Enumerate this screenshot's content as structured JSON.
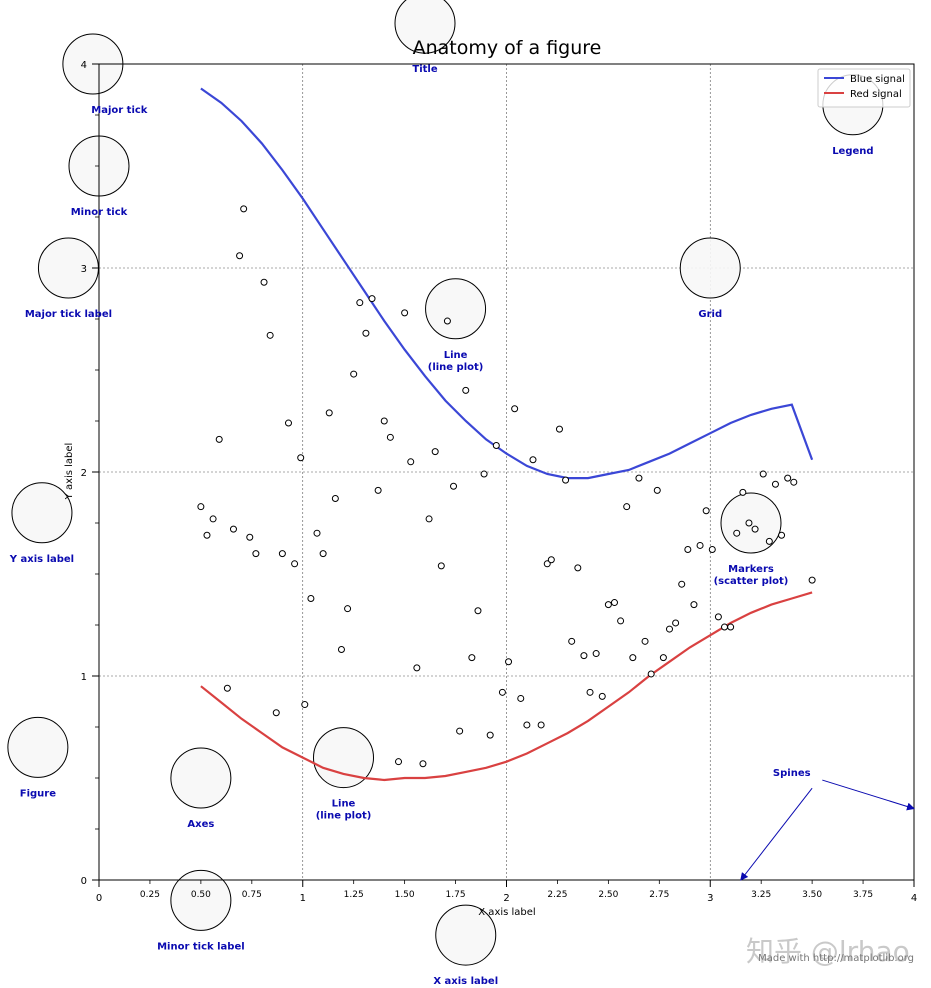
{
  "chart_data": {
    "type": "line",
    "title": "Anatomy of a figure",
    "xlabel": "X axis label",
    "ylabel": "Y axis label",
    "xlim": [
      0,
      4
    ],
    "ylim": [
      0,
      4
    ],
    "grid": true,
    "legend_position": "top-right",
    "x_major_ticks": [
      0,
      1,
      2,
      3,
      4
    ],
    "x_major_tick_labels": [
      "0",
      "1",
      "2",
      "3",
      "4"
    ],
    "x_minor_ticks": [
      0.25,
      0.5,
      0.75,
      1.25,
      1.5,
      1.75,
      2.25,
      2.5,
      2.75,
      3.25,
      3.5,
      3.75
    ],
    "x_minor_tick_labels": [
      "0.25",
      "0.50",
      "0.75",
      "1.25",
      "1.50",
      "1.75",
      "2.25",
      "2.50",
      "2.75",
      "3.25",
      "3.50",
      "3.75"
    ],
    "y_major_ticks": [
      0,
      1,
      2,
      3,
      4
    ],
    "y_major_tick_labels": [
      "0",
      "1",
      "2",
      "3",
      "4"
    ],
    "y_minor_ticks": [
      0.25,
      0.5,
      0.75,
      1.25,
      1.5,
      1.75,
      2.25,
      2.5,
      2.75,
      3.25,
      3.5,
      3.75
    ],
    "series": [
      {
        "name": "Blue signal",
        "color": "#3b47d6",
        "style": "line",
        "x": [
          0.5,
          0.6,
          0.7,
          0.8,
          0.9,
          1.0,
          1.1,
          1.2,
          1.3,
          1.4,
          1.5,
          1.6,
          1.7,
          1.8,
          1.9,
          2.0,
          2.1,
          2.2,
          2.3,
          2.4,
          2.5,
          2.6,
          2.7,
          2.8,
          2.9,
          3.0,
          3.1,
          3.2,
          3.3,
          3.4,
          3.5
        ],
        "y": [
          3.88,
          3.81,
          3.72,
          3.61,
          3.48,
          3.34,
          3.19,
          3.04,
          2.89,
          2.74,
          2.6,
          2.47,
          2.35,
          2.25,
          2.16,
          2.09,
          2.03,
          1.99,
          1.97,
          1.97,
          1.99,
          2.01,
          2.05,
          2.09,
          2.14,
          2.19,
          2.24,
          2.28,
          2.31,
          2.33,
          2.06
        ]
      },
      {
        "name": "Red signal",
        "color": "#d94141",
        "style": "line",
        "x": [
          0.5,
          0.6,
          0.7,
          0.8,
          0.9,
          1.0,
          1.1,
          1.2,
          1.3,
          1.4,
          1.5,
          1.6,
          1.7,
          1.8,
          1.9,
          2.0,
          2.1,
          2.2,
          2.3,
          2.4,
          2.5,
          2.6,
          2.7,
          2.8,
          2.9,
          3.0,
          3.1,
          3.2,
          3.3,
          3.4,
          3.5
        ],
        "y": [
          0.95,
          0.87,
          0.79,
          0.72,
          0.65,
          0.6,
          0.55,
          0.52,
          0.5,
          0.49,
          0.5,
          0.5,
          0.51,
          0.53,
          0.55,
          0.58,
          0.62,
          0.67,
          0.72,
          0.78,
          0.85,
          0.92,
          1.0,
          1.07,
          1.14,
          1.2,
          1.26,
          1.31,
          1.35,
          1.38,
          1.41
        ]
      },
      {
        "name": "",
        "style": "markers",
        "points": [
          [
            0.5,
            1.83
          ],
          [
            0.53,
            1.69
          ],
          [
            0.56,
            1.77
          ],
          [
            0.59,
            2.16
          ],
          [
            0.63,
            0.94
          ],
          [
            0.66,
            1.72
          ],
          [
            0.69,
            3.06
          ],
          [
            0.71,
            3.29
          ],
          [
            0.74,
            1.68
          ],
          [
            0.77,
            1.6
          ],
          [
            0.81,
            2.93
          ],
          [
            0.84,
            2.67
          ],
          [
            0.87,
            0.82
          ],
          [
            0.9,
            1.6
          ],
          [
            0.93,
            2.24
          ],
          [
            0.96,
            1.55
          ],
          [
            0.99,
            2.07
          ],
          [
            1.01,
            0.86
          ],
          [
            1.04,
            1.38
          ],
          [
            1.07,
            1.7
          ],
          [
            1.1,
            1.6
          ],
          [
            1.13,
            2.29
          ],
          [
            1.16,
            1.87
          ],
          [
            1.19,
            1.13
          ],
          [
            1.22,
            1.33
          ],
          [
            1.25,
            2.48
          ],
          [
            1.28,
            2.83
          ],
          [
            1.31,
            2.68
          ],
          [
            1.34,
            2.85
          ],
          [
            1.37,
            1.91
          ],
          [
            1.4,
            2.25
          ],
          [
            1.43,
            2.17
          ],
          [
            1.47,
            0.58
          ],
          [
            1.5,
            2.78
          ],
          [
            1.53,
            2.05
          ],
          [
            1.56,
            1.04
          ],
          [
            1.59,
            0.57
          ],
          [
            1.62,
            1.77
          ],
          [
            1.65,
            2.1
          ],
          [
            1.68,
            1.54
          ],
          [
            1.71,
            2.74
          ],
          [
            1.74,
            1.93
          ],
          [
            1.77,
            0.73
          ],
          [
            1.8,
            2.4
          ],
          [
            1.83,
            1.09
          ],
          [
            1.86,
            1.32
          ],
          [
            1.89,
            1.99
          ],
          [
            1.92,
            0.71
          ],
          [
            1.95,
            2.13
          ],
          [
            1.98,
            0.92
          ],
          [
            2.01,
            1.07
          ],
          [
            2.04,
            2.31
          ],
          [
            2.07,
            0.89
          ],
          [
            2.1,
            0.76
          ],
          [
            2.13,
            2.06
          ],
          [
            2.17,
            0.76
          ],
          [
            2.2,
            1.55
          ],
          [
            2.22,
            1.57
          ],
          [
            2.26,
            2.21
          ],
          [
            2.29,
            1.96
          ],
          [
            2.32,
            1.17
          ],
          [
            2.35,
            1.53
          ],
          [
            2.38,
            1.1
          ],
          [
            2.41,
            0.92
          ],
          [
            2.44,
            1.11
          ],
          [
            2.47,
            0.9
          ],
          [
            2.5,
            1.35
          ],
          [
            2.53,
            1.36
          ],
          [
            2.56,
            1.27
          ],
          [
            2.59,
            1.83
          ],
          [
            2.62,
            1.09
          ],
          [
            2.65,
            1.97
          ],
          [
            2.68,
            1.17
          ],
          [
            2.71,
            1.01
          ],
          [
            2.74,
            1.91
          ],
          [
            2.77,
            1.09
          ],
          [
            2.8,
            1.23
          ],
          [
            2.83,
            1.26
          ],
          [
            2.86,
            1.45
          ],
          [
            2.89,
            1.62
          ],
          [
            2.92,
            1.35
          ],
          [
            2.95,
            1.64
          ],
          [
            2.98,
            1.81
          ],
          [
            3.01,
            1.62
          ],
          [
            3.04,
            1.29
          ],
          [
            3.07,
            1.24
          ],
          [
            3.1,
            1.24
          ],
          [
            3.13,
            1.7
          ],
          [
            3.16,
            1.9
          ],
          [
            3.19,
            1.75
          ],
          [
            3.22,
            1.72
          ],
          [
            3.26,
            1.99
          ],
          [
            3.29,
            1.66
          ],
          [
            3.32,
            1.94
          ],
          [
            3.35,
            1.69
          ],
          [
            3.38,
            1.97
          ],
          [
            3.41,
            1.95
          ],
          [
            3.5,
            1.47
          ]
        ]
      }
    ],
    "annotations": [
      {
        "name": "annotation-title",
        "label": "Title",
        "x": 1.6,
        "y": 4.2,
        "text_x": 1.6,
        "text_y": 3.95
      },
      {
        "name": "annotation-major-tick",
        "label": "Major tick",
        "x": -0.03,
        "y": 4.0,
        "text_x": 0.1,
        "text_y": 3.75
      },
      {
        "name": "annotation-minor-tick",
        "label": "Minor tick",
        "x": 0.0,
        "y": 3.5,
        "text_x": 0.0,
        "text_y": 3.25
      },
      {
        "name": "annotation-major-tick-label",
        "label": "Major tick label",
        "x": -0.15,
        "y": 3.0,
        "text_x": -0.15,
        "text_y": 2.75
      },
      {
        "name": "annotation-grid",
        "label": "Grid",
        "x": 3.0,
        "y": 3.0,
        "text_x": 3.0,
        "text_y": 2.75
      },
      {
        "name": "annotation-line-blue",
        "label": "Line\n(line plot)",
        "x": 1.75,
        "y": 2.8,
        "text_x": 1.75,
        "text_y": 2.55
      },
      {
        "name": "annotation-legend",
        "label": "Legend",
        "x": 3.7,
        "y": 3.8,
        "text_x": 3.7,
        "text_y": 3.55
      },
      {
        "name": "annotation-y-axis-label",
        "label": "Y axis label",
        "x": -0.28,
        "y": 1.8,
        "text_x": -0.28,
        "text_y": 1.55
      },
      {
        "name": "annotation-markers",
        "label": "Markers\n(scatter plot)",
        "x": 3.2,
        "y": 1.75,
        "text_x": 3.2,
        "text_y": 1.5
      },
      {
        "name": "annotation-line-red",
        "label": "Line\n(line plot)",
        "x": 1.2,
        "y": 0.6,
        "text_x": 1.2,
        "text_y": 0.35
      },
      {
        "name": "annotation-figure",
        "label": "Figure",
        "x": -0.3,
        "y": 0.65,
        "text_x": -0.3,
        "text_y": 0.4
      },
      {
        "name": "annotation-axes",
        "label": "Axes",
        "x": 0.5,
        "y": 0.5,
        "text_x": 0.5,
        "text_y": 0.25
      },
      {
        "name": "annotation-minor-tick-label",
        "label": "Minor tick label",
        "x": 0.5,
        "y": -0.1,
        "text_x": 0.5,
        "text_y": -0.35
      },
      {
        "name": "annotation-x-axis-label",
        "label": "X axis label",
        "x": 1.8,
        "y": -0.27,
        "text_x": 1.8,
        "text_y": -0.52
      },
      {
        "name": "annotation-spines",
        "label": "Spines",
        "x": null,
        "y": null,
        "text_x": 3.4,
        "text_y": 0.5
      }
    ],
    "spines_arrows": [
      {
        "from": [
          3.5,
          0.45
        ],
        "to": [
          3.15,
          0.0
        ]
      },
      {
        "from": [
          3.55,
          0.49
        ],
        "to": [
          4.0,
          0.35
        ]
      }
    ],
    "credit": "Made with http://matplotlib.org"
  },
  "watermark": "知乎 @lrhao"
}
